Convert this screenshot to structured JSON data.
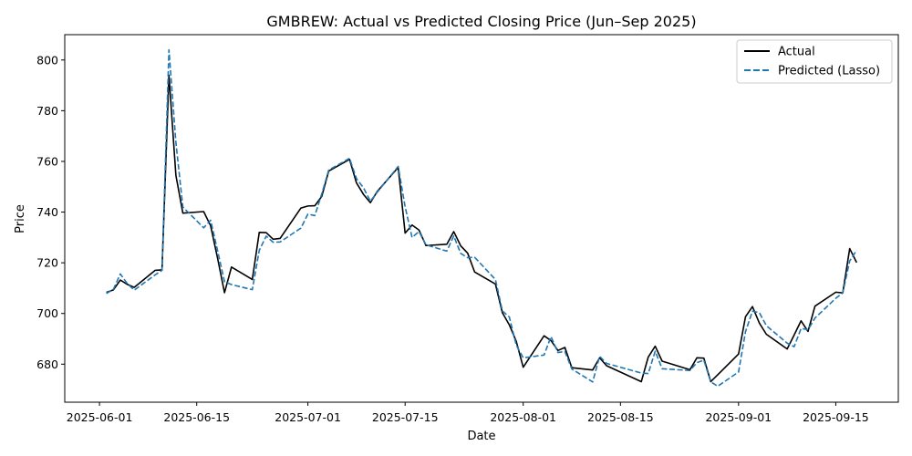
{
  "chart_data": {
    "type": "line",
    "title": "GMBREW: Actual vs Predicted Closing Price (Jun–Sep 2025)",
    "xlabel": "Date",
    "ylabel": "Price",
    "xlim": [
      "2025-05-27",
      "2025-09-24"
    ],
    "ylim": [
      665,
      810
    ],
    "x_ticks": [
      "2025-06-01",
      "2025-06-15",
      "2025-07-01",
      "2025-07-15",
      "2025-08-01",
      "2025-08-15",
      "2025-09-01",
      "2025-09-15"
    ],
    "y_ticks": [
      680,
      700,
      720,
      740,
      760,
      780,
      800
    ],
    "grid": false,
    "legend_position": "top-right",
    "series": [
      {
        "name": "Actual",
        "color": "#000000",
        "style": "solid",
        "points": [
          [
            "2025-06-02",
            708.3
          ],
          [
            "2025-06-03",
            709.3
          ],
          [
            "2025-06-04",
            713.2
          ],
          [
            "2025-06-05",
            711.5
          ],
          [
            "2025-06-06",
            710.3
          ],
          [
            "2025-06-09",
            717.0
          ],
          [
            "2025-06-10",
            717.2
          ],
          [
            "2025-06-11",
            794.0
          ],
          [
            "2025-06-12",
            754.5
          ],
          [
            "2025-06-13",
            739.6
          ],
          [
            "2025-06-16",
            740.2
          ],
          [
            "2025-06-17",
            734.6
          ],
          [
            "2025-06-18",
            721.8
          ],
          [
            "2025-06-19",
            708.2
          ],
          [
            "2025-06-20",
            718.3
          ],
          [
            "2025-06-23",
            713.4
          ],
          [
            "2025-06-24",
            732.0
          ],
          [
            "2025-06-25",
            731.9
          ],
          [
            "2025-06-26",
            729.3
          ],
          [
            "2025-06-27",
            729.6
          ],
          [
            "2025-06-30",
            741.6
          ],
          [
            "2025-07-01",
            742.4
          ],
          [
            "2025-07-02",
            742.5
          ],
          [
            "2025-07-03",
            746.2
          ],
          [
            "2025-07-04",
            756.2
          ],
          [
            "2025-07-07",
            760.8
          ],
          [
            "2025-07-08",
            751.5
          ],
          [
            "2025-07-09",
            747.0
          ],
          [
            "2025-07-10",
            743.7
          ],
          [
            "2025-07-11",
            748.2
          ],
          [
            "2025-07-14",
            757.6
          ],
          [
            "2025-07-15",
            731.7
          ],
          [
            "2025-07-16",
            734.9
          ],
          [
            "2025-07-17",
            732.9
          ],
          [
            "2025-07-18",
            726.8
          ],
          [
            "2025-07-21",
            727.3
          ],
          [
            "2025-07-22",
            732.3
          ],
          [
            "2025-07-23",
            726.7
          ],
          [
            "2025-07-24",
            723.8
          ],
          [
            "2025-07-25",
            716.4
          ],
          [
            "2025-07-28",
            711.6
          ],
          [
            "2025-07-29",
            700.3
          ],
          [
            "2025-07-30",
            695.5
          ],
          [
            "2025-07-31",
            689.0
          ],
          [
            "2025-08-01",
            678.8
          ],
          [
            "2025-08-04",
            691.2
          ],
          [
            "2025-08-05",
            689.3
          ],
          [
            "2025-08-06",
            685.4
          ],
          [
            "2025-08-07",
            686.6
          ],
          [
            "2025-08-08",
            678.6
          ],
          [
            "2025-08-11",
            677.7
          ],
          [
            "2025-08-12",
            682.5
          ],
          [
            "2025-08-13",
            679.4
          ],
          [
            "2025-08-18",
            673.1
          ],
          [
            "2025-08-19",
            682.8
          ],
          [
            "2025-08-20",
            687.1
          ],
          [
            "2025-08-21",
            681.2
          ],
          [
            "2025-08-25",
            677.8
          ],
          [
            "2025-08-26",
            682.5
          ],
          [
            "2025-08-27",
            682.4
          ],
          [
            "2025-08-28",
            673.1
          ],
          [
            "2025-08-29",
            675.8
          ],
          [
            "2025-09-01",
            684.0
          ],
          [
            "2025-09-02",
            698.7
          ],
          [
            "2025-09-03",
            702.7
          ],
          [
            "2025-09-04",
            696.2
          ],
          [
            "2025-09-05",
            691.8
          ],
          [
            "2025-09-08",
            686.0
          ],
          [
            "2025-09-09",
            691.5
          ],
          [
            "2025-09-10",
            697.1
          ],
          [
            "2025-09-11",
            692.9
          ],
          [
            "2025-09-12",
            702.9
          ],
          [
            "2025-09-15",
            708.4
          ],
          [
            "2025-09-16",
            708.1
          ],
          [
            "2025-09-17",
            725.6
          ],
          [
            "2025-09-18",
            720.1
          ]
        ]
      },
      {
        "name": "Predicted (Lasso)",
        "color": "#1f77b4",
        "style": "dashed",
        "points": [
          [
            "2025-06-02",
            707.9
          ],
          [
            "2025-06-03",
            709.5
          ],
          [
            "2025-06-04",
            715.6
          ],
          [
            "2025-06-05",
            711.8
          ],
          [
            "2025-06-06",
            709.2
          ],
          [
            "2025-06-09",
            715.2
          ],
          [
            "2025-06-10",
            717.0
          ],
          [
            "2025-06-11",
            804.0
          ],
          [
            "2025-06-12",
            767.5
          ],
          [
            "2025-06-13",
            742.0
          ],
          [
            "2025-06-16",
            733.8
          ],
          [
            "2025-06-17",
            736.8
          ],
          [
            "2025-06-18",
            724.8
          ],
          [
            "2025-06-19",
            712.5
          ],
          [
            "2025-06-20",
            711.4
          ],
          [
            "2025-06-23",
            709.4
          ],
          [
            "2025-06-24",
            724.9
          ],
          [
            "2025-06-25",
            730.5
          ],
          [
            "2025-06-26",
            728.1
          ],
          [
            "2025-06-27",
            728.2
          ],
          [
            "2025-06-30",
            733.7
          ],
          [
            "2025-07-01",
            739.2
          ],
          [
            "2025-07-02",
            738.6
          ],
          [
            "2025-07-03",
            747.2
          ],
          [
            "2025-07-04",
            756.6
          ],
          [
            "2025-07-07",
            761.2
          ],
          [
            "2025-07-08",
            753.2
          ],
          [
            "2025-07-09",
            749.6
          ],
          [
            "2025-07-10",
            744.3
          ],
          [
            "2025-07-11",
            747.9
          ],
          [
            "2025-07-14",
            758.0
          ],
          [
            "2025-07-15",
            742.1
          ],
          [
            "2025-07-16",
            730.0
          ],
          [
            "2025-07-17",
            732.3
          ],
          [
            "2025-07-18",
            727.1
          ],
          [
            "2025-07-21",
            724.6
          ],
          [
            "2025-07-22",
            730.6
          ],
          [
            "2025-07-23",
            723.7
          ],
          [
            "2025-07-24",
            722.0
          ],
          [
            "2025-07-25",
            722.2
          ],
          [
            "2025-07-28",
            713.4
          ],
          [
            "2025-07-29",
            701.0
          ],
          [
            "2025-07-30",
            698.6
          ],
          [
            "2025-07-31",
            687.5
          ],
          [
            "2025-08-01",
            682.5
          ],
          [
            "2025-08-04",
            683.6
          ],
          [
            "2025-08-05",
            690.9
          ],
          [
            "2025-08-06",
            684.6
          ],
          [
            "2025-08-07",
            685.0
          ],
          [
            "2025-08-08",
            678.1
          ],
          [
            "2025-08-11",
            673.0
          ],
          [
            "2025-08-12",
            683.1
          ],
          [
            "2025-08-13",
            680.3
          ],
          [
            "2025-08-18",
            676.5
          ],
          [
            "2025-08-19",
            676.3
          ],
          [
            "2025-08-20",
            685.1
          ],
          [
            "2025-08-21",
            678.2
          ],
          [
            "2025-08-25",
            677.5
          ],
          [
            "2025-08-26",
            680.6
          ],
          [
            "2025-08-27",
            681.6
          ],
          [
            "2025-08-28",
            673.0
          ],
          [
            "2025-08-29",
            671.3
          ],
          [
            "2025-09-01",
            676.9
          ],
          [
            "2025-09-02",
            692.8
          ],
          [
            "2025-09-03",
            700.9
          ],
          [
            "2025-09-04",
            700.3
          ],
          [
            "2025-09-05",
            695.2
          ],
          [
            "2025-09-08",
            688.3
          ],
          [
            "2025-09-09",
            686.9
          ],
          [
            "2025-09-10",
            694.1
          ],
          [
            "2025-09-11",
            693.6
          ],
          [
            "2025-09-12",
            698.2
          ],
          [
            "2025-09-15",
            706.0
          ],
          [
            "2025-09-16",
            708.1
          ],
          [
            "2025-09-17",
            720.7
          ],
          [
            "2025-09-18",
            725.0
          ]
        ]
      }
    ]
  }
}
